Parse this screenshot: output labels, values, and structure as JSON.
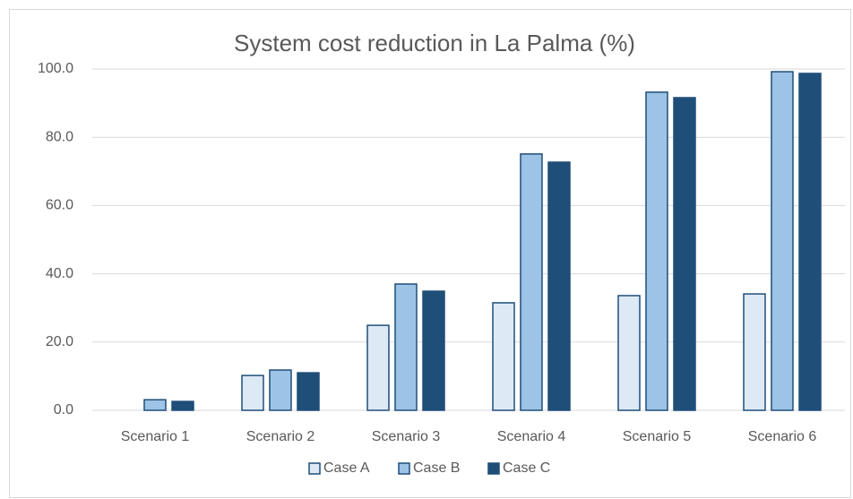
{
  "chart_data": {
    "type": "bar",
    "title": "System cost reduction in La Palma (%)",
    "categories": [
      "Scenario 1",
      "Scenario 2",
      "Scenario 3",
      "Scenario 4",
      "Scenario 5",
      "Scenario 6"
    ],
    "series": [
      {
        "name": "Case A",
        "color": "#dee9f6",
        "values": [
          0,
          10.2,
          24.9,
          31.5,
          33.6,
          34.1
        ]
      },
      {
        "name": "Case B",
        "color": "#9dc3e6",
        "values": [
          3.1,
          11.8,
          37.0,
          75.1,
          93.2,
          99.2
        ]
      },
      {
        "name": "Case C",
        "color": "#1f4e79",
        "values": [
          2.6,
          11.0,
          34.9,
          72.7,
          91.6,
          98.7
        ]
      }
    ],
    "ylim": [
      0,
      100
    ],
    "yticks": [
      {
        "value": 0,
        "label": "0.0"
      },
      {
        "value": 20,
        "label": "20.0"
      },
      {
        "value": 40,
        "label": "40.0"
      },
      {
        "value": 60,
        "label": "60.0"
      },
      {
        "value": 80,
        "label": "80.0"
      },
      {
        "value": 100,
        "label": "100.0"
      }
    ],
    "grid": true,
    "legend": "bottom"
  }
}
